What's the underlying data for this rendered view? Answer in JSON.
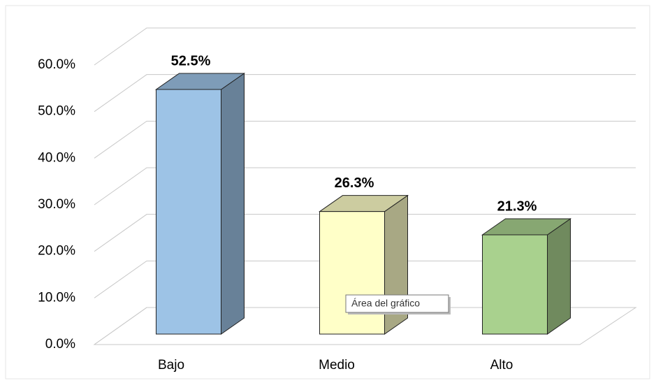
{
  "chart_data": {
    "type": "bar3d",
    "categories": [
      "Bajo",
      "Medio",
      "Alto"
    ],
    "values": [
      52.5,
      26.3,
      21.3
    ],
    "value_labels": [
      "52.5%",
      "26.3%",
      "21.3%"
    ],
    "colors": [
      "#9dc3e6",
      "#ffffc8",
      "#a9d18e"
    ],
    "ylim": [
      0,
      60
    ],
    "yticks": [
      {
        "value": 0,
        "label": "0.0%"
      },
      {
        "value": 10,
        "label": "10.0%"
      },
      {
        "value": 20,
        "label": "20.0%"
      },
      {
        "value": 30,
        "label": "30.0%"
      },
      {
        "value": 40,
        "label": "40.0%"
      },
      {
        "value": 50,
        "label": "50.0%"
      },
      {
        "value": 60,
        "label": "60.0%"
      }
    ],
    "grid": true,
    "annotation": "Área del gráfico"
  }
}
